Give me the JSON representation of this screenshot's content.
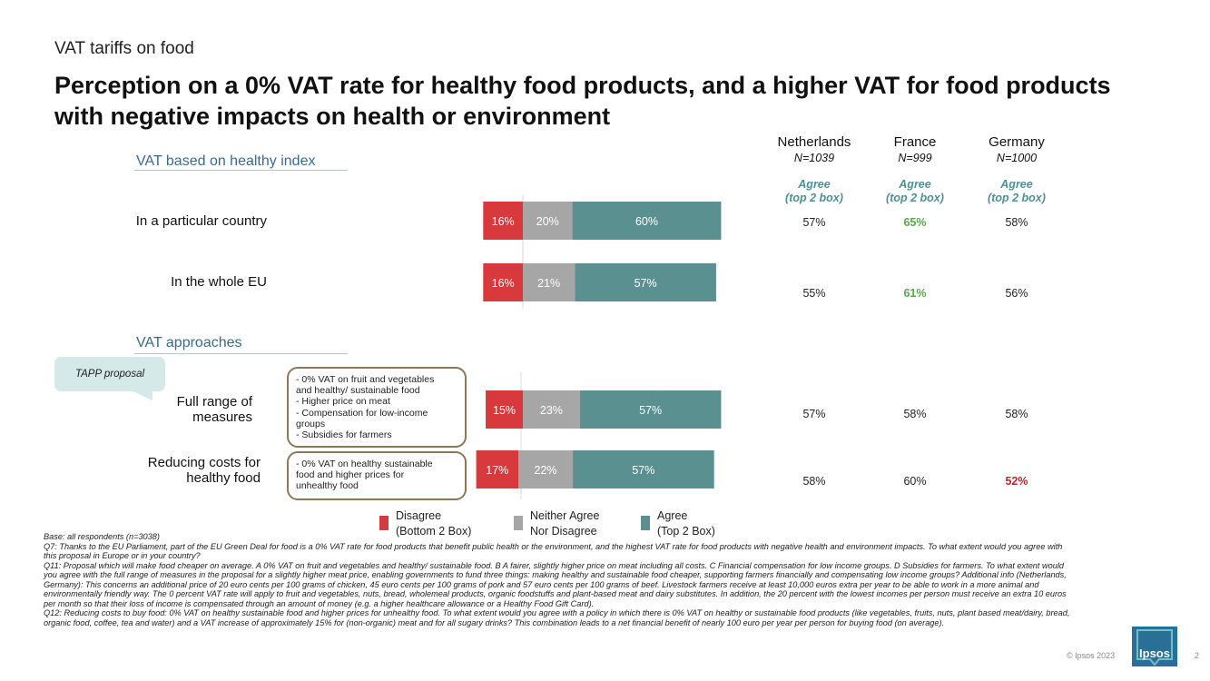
{
  "kicker": "VAT tariffs on food",
  "title": "Perception on a 0% VAT rate for healthy food products, and a higher VAT for food products with negative impacts on health or environment",
  "sections": {
    "healthy_index": "VAT based on healthy index",
    "approaches": "VAT approaches"
  },
  "rows": [
    {
      "label": "In a particular country"
    },
    {
      "label": "In the whole EU"
    },
    {
      "label": "Full range of\nmeasures"
    },
    {
      "label": "Reducing costs for\nhealthy food"
    }
  ],
  "tapp_label": "TAPP proposal",
  "callouts": {
    "full_range": [
      "- 0% VAT on fruit and vegetables",
      "and healthy/ sustainable food",
      "- Higher price on meat",
      "- Compensation for low-income",
      "groups",
      "- Subsidies for farmers"
    ],
    "reducing": [
      "- 0% VAT on healthy sustainable",
      "food and higher prices for",
      "unhealthy food"
    ]
  },
  "columns": [
    {
      "country": "Netherlands",
      "n": "N=1039"
    },
    {
      "country": "France",
      "n": "N=999"
    },
    {
      "country": "Germany",
      "n": "N=1000"
    }
  ],
  "agree_head": {
    "line1": "Agree",
    "line2": "(top 2 box)"
  },
  "table_values": [
    [
      "57%",
      "65%",
      "58%"
    ],
    [
      "55%",
      "61%",
      "56%"
    ],
    [
      "57%",
      "58%",
      "58%"
    ],
    [
      "58%",
      "60%",
      "52%"
    ]
  ],
  "table_highlights": [
    [
      "none",
      "green",
      "none"
    ],
    [
      "none",
      "green",
      "none"
    ],
    [
      "none",
      "none",
      "none"
    ],
    [
      "none",
      "none",
      "red"
    ]
  ],
  "chart_data": {
    "type": "bar",
    "stacked": true,
    "orientation": "horizontal",
    "categories": [
      "In a particular country",
      "In the whole EU",
      "Full range of measures",
      "Reducing costs for healthy food"
    ],
    "series": [
      {
        "name": "Disagree (Bottom 2 Box)",
        "values": [
          16,
          16,
          15,
          17
        ],
        "color": "#d8393d",
        "labels": [
          "16%",
          "16%",
          "15%",
          "17%"
        ]
      },
      {
        "name": "Neither Agree Nor Disagree",
        "values": [
          20,
          21,
          23,
          22
        ],
        "color": "#a6a6a6",
        "labels": [
          "20%",
          "21%",
          "23%",
          "22%"
        ]
      },
      {
        "name": "Agree (Top 2 Box)",
        "values": [
          60,
          57,
          57,
          57
        ],
        "color": "#5a9190",
        "labels": [
          "60%",
          "57%",
          "57%",
          "57%"
        ]
      }
    ]
  },
  "legend": [
    {
      "line1": "Disagree",
      "line2": "(Bottom 2 Box)",
      "color": "#d8393d"
    },
    {
      "line1": "Neither Agree",
      "line2": "Nor Disagree",
      "color": "#a6a6a6"
    },
    {
      "line1": "Agree",
      "line2": "(Top 2 Box)",
      "color": "#5a9190"
    }
  ],
  "notes": [
    "Base: all respondents (n=3038)",
    "Q7: Thanks to the EU Parliament, part of the EU Green Deal for food is a 0% VAT rate for food products that benefit public health or the environment, and the highest VAT rate for food products with negative health and environment impacts. To what extent would you agree with this proposal in Europe or in your country?",
    "Q11: Proposal which will make food cheaper on average. A 0% VAT on fruit and vegetables and healthy/ sustainable food. B A fairer, slightly higher price on meat including all costs. C Financial compensation for low income groups. D Subsidies for farmers. To what extent would you agree with the full range of measures in the proposal for a slightly higher meat price, enabling governments to fund three things: making healthy and sustainable food cheaper, supporting farmers financially and compensating low income groups? Additional info (Netherlands, Germany): This concerns an additional price of 20 euro cents per 100 grams of chicken, 45 euro cents per 100 grams of pork and 57 euro cents per 100 grams of beef. Livestock farmers receive at least 10,000 euros extra per year to be able to work in a more animal and environmentally friendly way. The 0 percent VAT rate will apply to fruit and vegetables, nuts, bread, wholemeal products, organic foodstuffs and plant-based meat and dairy substitutes. In addition, the 20 percent with the lowest incomes per person must receive an extra 10 euros per month so that their loss of income is compensated through an amount of money (e.g. a higher healthcare allowance or a Healthy Food Gift Card).",
    "Q12: Reducing costs to buy food: 0% VAT on healthy sustainable food and higher prices for unhealthy food. To what extent would you agree with a policy in which there is 0% VAT on healthy or sustainable food products (like vegetables, fruits, nuts, plant based meat/dairy, bread, organic food, coffee, tea and water) and a VAT increase of approximately 15% for (non-organic) meat and for all sugary drinks? This combination leads to a net financial benefit of nearly 100 euro per year per person for buying food (on average)."
  ],
  "copyright": "© Ipsos 2023",
  "page_number": "2",
  "logo_text": "Ipsos"
}
